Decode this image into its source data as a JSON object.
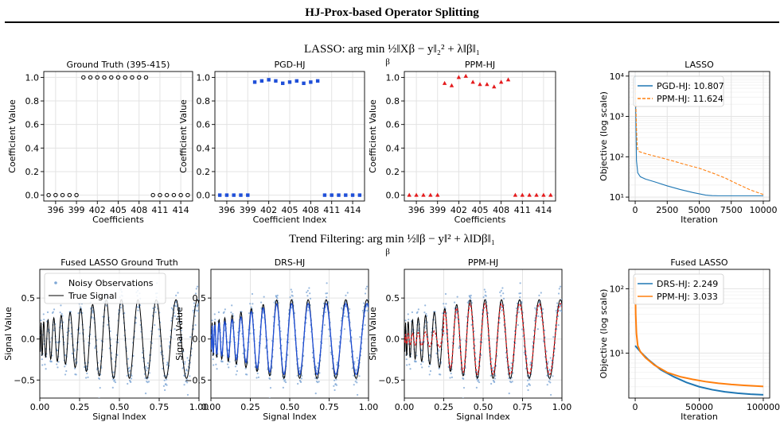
{
  "figure_title": "HJ-Prox-based Operator Splitting",
  "section_titles": {
    "lasso": "LASSO: arg min ½‖Xβ − y‖₂² + λ‖β‖₁",
    "lasso_sub": "β",
    "trend": "Trend Filtering: arg min ½‖β − y‖² + λ‖Dβ‖₁",
    "trend_sub": "β"
  },
  "colors": {
    "blue": "#1f4fd8",
    "red": "#e41a1c",
    "mpl_blue": "#1f77b4",
    "mpl_orange": "#ff7f0e",
    "noisy": "#7fa8d6",
    "black": "#000000",
    "grid": "#e3e3e3"
  },
  "chart_data": [
    {
      "type": "scatter",
      "title": "Ground Truth (395-415)",
      "xlabel": "Coefficients",
      "ylabel": "Coefficient Value",
      "xlim": [
        394.3,
        415.7
      ],
      "ylim": [
        -0.05,
        1.05
      ],
      "xticks": [
        396,
        399,
        402,
        405,
        408,
        411,
        414
      ],
      "yticks": [
        0.0,
        0.2,
        0.4,
        0.6,
        0.8,
        1.0
      ],
      "marker": "open-circle",
      "color": "#000000",
      "x": [
        395,
        396,
        397,
        398,
        399,
        400,
        401,
        402,
        403,
        404,
        405,
        406,
        407,
        408,
        409,
        410,
        411,
        412,
        413,
        414,
        415
      ],
      "y": [
        0,
        0,
        0,
        0,
        0,
        1,
        1,
        1,
        1,
        1,
        1,
        1,
        1,
        1,
        1,
        0,
        0,
        0,
        0,
        0,
        0
      ]
    },
    {
      "type": "scatter",
      "title": "PGD-HJ",
      "xlabel": "Coefficient Index",
      "ylabel": "Coefficient Value",
      "xlim": [
        394.3,
        415.7
      ],
      "ylim": [
        -0.05,
        1.05
      ],
      "xticks": [
        396,
        399,
        402,
        405,
        408,
        411,
        414
      ],
      "yticks": [
        0.0,
        0.2,
        0.4,
        0.6,
        0.8,
        1.0
      ],
      "marker": "square",
      "color": "#1f4fd8",
      "x": [
        395,
        396,
        397,
        398,
        399,
        400,
        401,
        402,
        403,
        404,
        405,
        406,
        407,
        408,
        409,
        410,
        411,
        412,
        413,
        414,
        415
      ],
      "y": [
        0,
        0,
        0,
        0,
        0,
        0.96,
        0.97,
        0.98,
        0.97,
        0.95,
        0.96,
        0.97,
        0.95,
        0.96,
        0.97,
        0,
        0,
        0,
        0,
        0,
        0
      ]
    },
    {
      "type": "scatter",
      "title": "PPM-HJ",
      "xlabel": "Coefficients",
      "ylabel": "Coefficient Value",
      "xlim": [
        394.3,
        415.7
      ],
      "ylim": [
        -0.05,
        1.05
      ],
      "xticks": [
        396,
        399,
        402,
        405,
        408,
        411,
        414
      ],
      "yticks": [
        0.0,
        0.2,
        0.4,
        0.6,
        0.8,
        1.0
      ],
      "marker": "triangle",
      "color": "#e41a1c",
      "x": [
        395,
        396,
        397,
        398,
        399,
        400,
        401,
        402,
        403,
        404,
        405,
        406,
        407,
        408,
        409,
        410,
        411,
        412,
        413,
        414,
        415
      ],
      "y": [
        0,
        0,
        0,
        0,
        0,
        0.95,
        0.93,
        1.0,
        1.01,
        0.96,
        0.94,
        0.94,
        0.92,
        0.96,
        0.98,
        0,
        0,
        0,
        0,
        0,
        0
      ]
    },
    {
      "type": "line",
      "title": "LASSO",
      "xlabel": "Iteration",
      "ylabel": "Objective (log scale)",
      "xlim": [
        -500,
        10500
      ],
      "ylim": [
        8,
        13000
      ],
      "yscale": "log",
      "xticks": [
        0,
        2500,
        5000,
        7500,
        10000
      ],
      "yticks": [
        10,
        100,
        1000,
        10000
      ],
      "ytick_labels": [
        "10¹",
        "10²",
        "10³",
        "10⁴"
      ],
      "legend": "top-right",
      "series": [
        {
          "name": "PGD-HJ: 10.807",
          "color": "#1f77b4",
          "dash": "solid",
          "x": [
            0,
            100,
            200,
            400,
            800,
            1500,
            2500,
            3500,
            4500,
            5500,
            6000,
            6500,
            8000,
            10000
          ],
          "y": [
            10000,
            80,
            40,
            32,
            28,
            24,
            19,
            15.5,
            13,
            11.2,
            10.9,
            10.81,
            10.807,
            10.807
          ]
        },
        {
          "name": "PPM-HJ: 11.624",
          "color": "#ff7f0e",
          "dash": "dashed",
          "x": [
            0,
            50,
            100,
            150,
            200,
            300,
            600,
            1000,
            2000,
            3000,
            4000,
            5000,
            6000,
            7000,
            8000,
            9000,
            10000
          ],
          "y": [
            6000,
            2000,
            500,
            200,
            150,
            135,
            125,
            115,
            95,
            78,
            63,
            52,
            40,
            30,
            21,
            15,
            11.624
          ]
        }
      ]
    },
    {
      "type": "scatter",
      "title": "Fused LASSO Ground Truth",
      "xlabel": "Signal Index",
      "ylabel": "Signal Value",
      "xlim": [
        0,
        1
      ],
      "ylim": [
        -0.72,
        0.85
      ],
      "xticks": [
        0.0,
        0.25,
        0.5,
        0.75,
        1.0
      ],
      "xtick_labels": [
        "0.00",
        "0.25",
        "0.50",
        "0.75",
        "1.00"
      ],
      "yticks": [
        -0.5,
        0.0,
        0.5
      ],
      "ytick_labels": [
        "−0.5",
        "0.0",
        "0.5"
      ],
      "legend": "top-left",
      "legend_entries": [
        "Noisy Observations",
        "True Signal"
      ],
      "signal_amplitude": [
        0.2,
        0.48
      ],
      "signal_phase_scale": 90,
      "signal_phase_power": 0.5,
      "noise_sd": 0.1
    },
    {
      "type": "line",
      "title": "DRS-HJ",
      "xlabel": "Signal Index",
      "ylabel": "Signal Value",
      "xlim": [
        0,
        1
      ],
      "ylim": [
        -0.72,
        0.85
      ],
      "xticks": [
        0.0,
        0.25,
        0.5,
        0.75,
        1.0
      ],
      "xtick_labels": [
        "0.00",
        "0.25",
        "0.50",
        "0.75",
        "1.00"
      ],
      "yticks": [
        -0.5,
        0.0,
        0.5
      ],
      "ytick_labels": [
        "−0.5",
        "0.0",
        "0.5"
      ],
      "estimate_color": "#1f4fd8",
      "estimate_style": "solid"
    },
    {
      "type": "line",
      "title": "PPM-HJ",
      "xlabel": "Signal Index",
      "ylabel": "Signal Value",
      "xlim": [
        0,
        1
      ],
      "ylim": [
        -0.72,
        0.85
      ],
      "xticks": [
        0.0,
        0.25,
        0.5,
        0.75,
        1.0
      ],
      "xtick_labels": [
        "0.00",
        "0.25",
        "0.50",
        "0.75",
        "1.00"
      ],
      "yticks": [
        -0.5,
        0.0,
        0.5
      ],
      "ytick_labels": [
        "−0.5",
        "0.0",
        "0.5"
      ],
      "estimate_color": "#e41a1c",
      "estimate_style": "dashed"
    },
    {
      "type": "line",
      "title": "Fused LASSO",
      "xlabel": "Iteration",
      "ylabel": "Objective (log scale)",
      "xlim": [
        -5000,
        105000
      ],
      "ylim": [
        2.0,
        200
      ],
      "yscale": "log",
      "xticks": [
        0,
        50000,
        100000
      ],
      "yticks": [
        10,
        100
      ],
      "ytick_labels": [
        "10¹",
        "10²"
      ],
      "legend": "top-right",
      "series": [
        {
          "name": "DRS-HJ: 2.249",
          "color": "#1f77b4",
          "dash": "solid",
          "x": [
            0,
            5000,
            10000,
            20000,
            30000,
            40000,
            50000,
            60000,
            70000,
            80000,
            90000,
            100000
          ],
          "y": [
            13,
            10,
            8,
            5.5,
            4.3,
            3.5,
            3.0,
            2.7,
            2.5,
            2.38,
            2.3,
            2.249
          ]
        },
        {
          "name": "PPM-HJ: 3.033",
          "color": "#ff7f0e",
          "dash": "solid",
          "x": [
            0,
            400,
            1000,
            2000,
            4000,
            8000,
            15000,
            25000,
            35000,
            45000,
            55000,
            65000,
            75000,
            85000,
            95000,
            100000
          ],
          "y": [
            150,
            40,
            20,
            13,
            10.5,
            8.5,
            6.5,
            5.0,
            4.3,
            3.9,
            3.6,
            3.4,
            3.25,
            3.15,
            3.07,
            3.033
          ]
        }
      ]
    }
  ]
}
